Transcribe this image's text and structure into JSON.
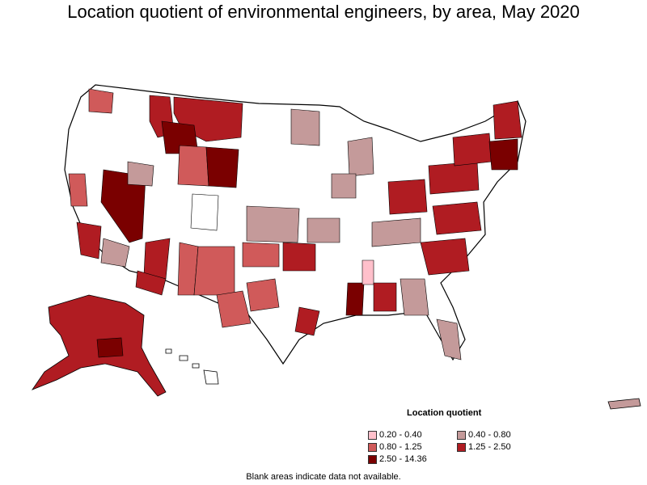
{
  "title": "Location quotient of environmental engineers, by area, May 2020",
  "legend": {
    "title": "Location quotient",
    "items": [
      {
        "label": "0.20 - 0.40",
        "color": "#ffc0cb"
      },
      {
        "label": "0.40 - 0.80",
        "color": "#c49a9a"
      },
      {
        "label": "0.80 - 1.25",
        "color": "#d05a5a"
      },
      {
        "label": "1.25 - 2.50",
        "color": "#b01c22"
      },
      {
        "label": "2.50 - 14.36",
        "color": "#7a0000"
      }
    ]
  },
  "footnote": "Blank areas indicate data not available.",
  "colors": {
    "blank": "#ffffff",
    "border": "#000000"
  }
}
